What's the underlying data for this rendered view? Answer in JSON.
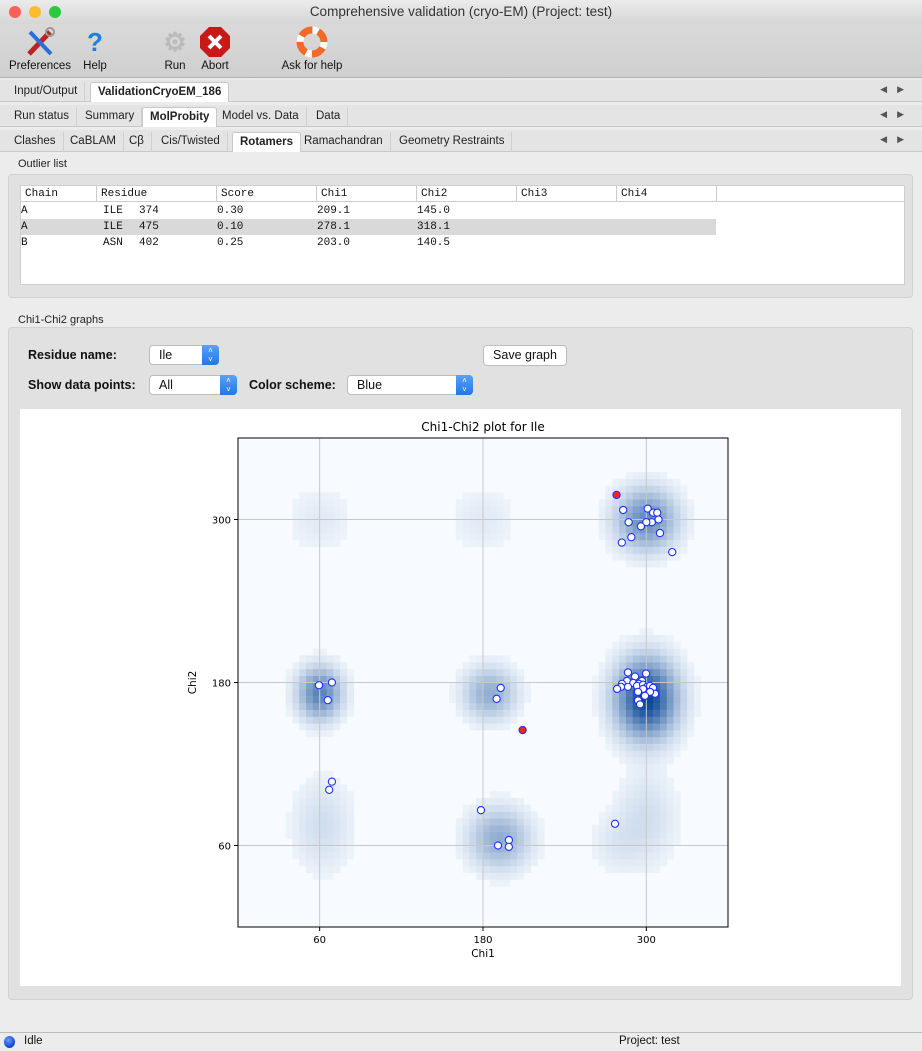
{
  "window": {
    "title": "Comprehensive validation (cryo-EM) (Project: test)"
  },
  "toolbar": {
    "preferences": "Preferences",
    "help": "Help",
    "run": "Run",
    "abort": "Abort",
    "ask_for_help": "Ask for help"
  },
  "tabs_main": [
    {
      "label": "Input/Output",
      "active": false
    },
    {
      "label": "ValidationCryoEM_186",
      "active": true
    }
  ],
  "tabs_result": [
    {
      "label": "Run status",
      "active": false
    },
    {
      "label": "Summary",
      "active": false
    },
    {
      "label": "MolProbity",
      "active": true
    },
    {
      "label": "Model vs. Data",
      "active": false
    },
    {
      "label": "Data",
      "active": false
    }
  ],
  "tabs_molprobity": [
    {
      "label": "Clashes",
      "active": false
    },
    {
      "label": "CaBLAM",
      "active": false
    },
    {
      "label": "Cβ",
      "active": false
    },
    {
      "label": "Cis/Twisted",
      "active": false
    },
    {
      "label": "Rotamers",
      "active": true
    },
    {
      "label": "Ramachandran",
      "active": false
    },
    {
      "label": "Geometry Restraints",
      "active": false
    }
  ],
  "outliers": {
    "label": "Outlier list",
    "columns": [
      "Chain",
      "Residue",
      "Score",
      "Chi1",
      "Chi2",
      "Chi3",
      "Chi4"
    ],
    "rows": [
      {
        "chain": "A",
        "resname": "ILE",
        "resnum": "374",
        "score": "0.30",
        "chi1": "209.1",
        "chi2": "145.0",
        "chi3": "",
        "chi4": "",
        "selected": false
      },
      {
        "chain": "A",
        "resname": "ILE",
        "resnum": "475",
        "score": "0.10",
        "chi1": "278.1",
        "chi2": "318.1",
        "chi3": "",
        "chi4": "",
        "selected": true
      },
      {
        "chain": "B",
        "resname": "ASN",
        "resnum": "402",
        "score": "0.25",
        "chi1": "203.0",
        "chi2": "140.5",
        "chi3": "",
        "chi4": "",
        "selected": false
      }
    ]
  },
  "graphs": {
    "label": "Chi1-Chi2 graphs",
    "residue_name_label": "Residue name:",
    "residue_name_value": "Ile",
    "show_points_label": "Show data points:",
    "show_points_value": "All",
    "color_scheme_label": "Color scheme:",
    "color_scheme_value": "Blue",
    "save_graph": "Save graph"
  },
  "chart_data": {
    "type": "scatter",
    "title": "Chi1-Chi2 plot for Ile",
    "xlabel": "Chi1",
    "ylabel": "Chi2",
    "xlim": [
      0,
      360
    ],
    "ylim": [
      0,
      360
    ],
    "xticks": [
      60,
      180,
      300
    ],
    "yticks": [
      60,
      180,
      300
    ],
    "grid": true,
    "background": {
      "type": "heatmap",
      "colormap": "Blues",
      "peaks": [
        {
          "x": 300,
          "y": 168,
          "amp": 1.0,
          "sx": 14,
          "sy": 18
        },
        {
          "x": 60,
          "y": 172,
          "amp": 0.6,
          "sx": 10,
          "sy": 12
        },
        {
          "x": 185,
          "y": 172,
          "amp": 0.35,
          "sx": 12,
          "sy": 12
        },
        {
          "x": 300,
          "y": 300,
          "amp": 0.55,
          "sx": 14,
          "sy": 14
        },
        {
          "x": 192,
          "y": 65,
          "amp": 0.35,
          "sx": 14,
          "sy": 14
        },
        {
          "x": 62,
          "y": 75,
          "amp": 0.1,
          "sx": 14,
          "sy": 22
        },
        {
          "x": 300,
          "y": 80,
          "amp": 0.1,
          "sx": 14,
          "sy": 22
        },
        {
          "x": 60,
          "y": 300,
          "amp": 0.05,
          "sx": 16,
          "sy": 16
        },
        {
          "x": 180,
          "y": 300,
          "amp": 0.05,
          "sx": 16,
          "sy": 16
        },
        {
          "x": 278,
          "y": 62,
          "amp": 0.06,
          "sx": 12,
          "sy": 14
        }
      ]
    },
    "series": [
      {
        "color": "#ffffff",
        "edge": "#1f2fff",
        "points": [
          [
            283,
            307
          ],
          [
            287,
            298
          ],
          [
            289,
            287
          ],
          [
            282,
            283
          ],
          [
            301,
            308
          ],
          [
            305,
            305
          ],
          [
            308,
            305
          ],
          [
            309,
            300
          ],
          [
            304,
            298
          ],
          [
            300,
            298
          ],
          [
            296,
            295
          ],
          [
            310,
            290
          ],
          [
            319,
            276
          ],
          [
            59.5,
            178
          ],
          [
            69,
            180
          ],
          [
            66,
            167
          ],
          [
            190,
            168
          ],
          [
            193,
            176
          ],
          [
            69,
            107
          ],
          [
            67,
            101
          ],
          [
            178.5,
            86
          ],
          [
            191,
            60
          ],
          [
            199,
            64
          ],
          [
            199,
            59
          ],
          [
            277,
            76
          ],
          [
            286.5,
            187.4
          ],
          [
            291.7,
            184.4
          ],
          [
            299.8,
            186.6
          ],
          [
            285.8,
            181.2
          ],
          [
            290.4,
            179.7
          ],
          [
            296.8,
            181.2
          ],
          [
            294.5,
            179
          ],
          [
            282.1,
            179
          ],
          [
            281.4,
            176.8
          ],
          [
            278.5,
            175.3
          ],
          [
            286.5,
            176.8
          ],
          [
            293.2,
            177.5
          ],
          [
            297.6,
            178.3
          ],
          [
            300.5,
            176.8
          ],
          [
            302.7,
            177.5
          ],
          [
            304.9,
            176.1
          ],
          [
            306.4,
            171.7
          ],
          [
            297.6,
            175.3
          ],
          [
            293.9,
            173.1
          ],
          [
            302.7,
            173.1
          ],
          [
            299,
            170.2
          ],
          [
            293.9,
            166.8
          ],
          [
            295.4,
            163.9
          ]
        ]
      },
      {
        "color": "#ff2020",
        "edge": "#1f2fff",
        "points": [
          [
            209.1,
            145.0
          ],
          [
            278.1,
            318.1
          ]
        ]
      }
    ]
  },
  "status": {
    "text": "Idle",
    "project": "Project: test",
    "indicator_color": "#1a4fd8"
  }
}
